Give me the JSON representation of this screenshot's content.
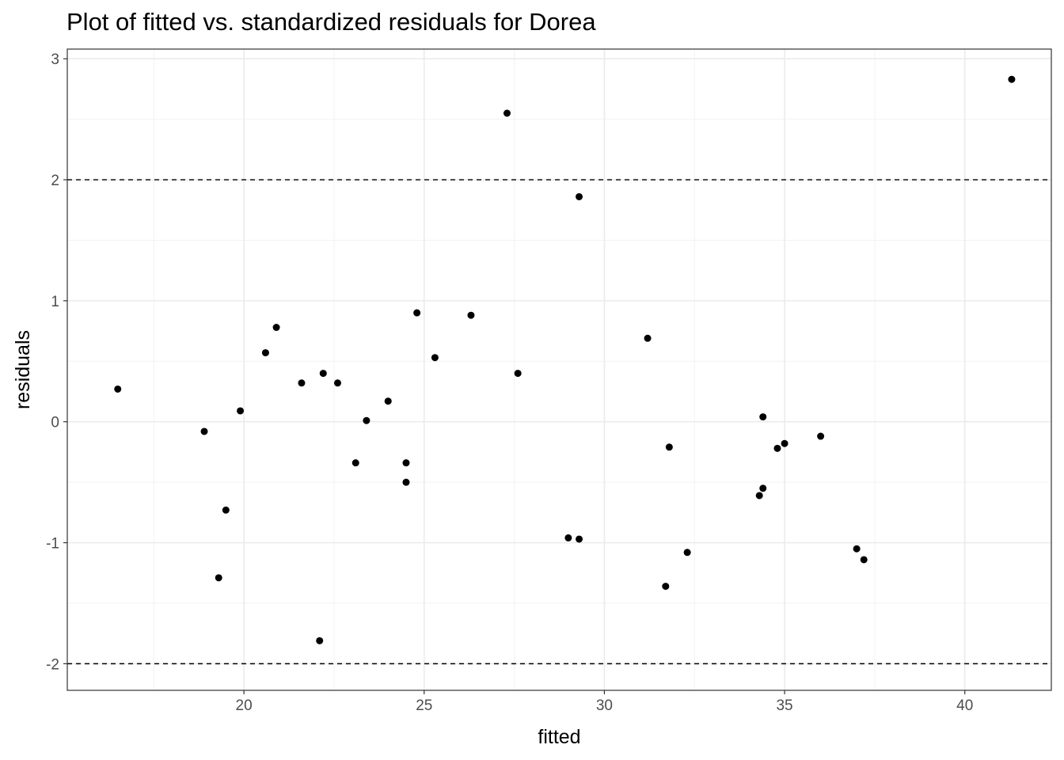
{
  "chart_data": {
    "type": "scatter",
    "title": "Plot of fitted vs. standardized residuals for Dorea",
    "xlabel": "fitted",
    "ylabel": "residuals",
    "xlim": [
      15.1,
      42.4
    ],
    "ylim": [
      -2.22,
      3.08
    ],
    "x_ticks": [
      20,
      25,
      30,
      35,
      40
    ],
    "y_ticks": [
      -2,
      -1,
      0,
      1,
      2,
      3
    ],
    "x_tick_labels": [
      "20",
      "25",
      "30",
      "35",
      "40"
    ],
    "y_tick_labels": [
      "-2",
      "-1",
      "0",
      "1",
      "2",
      "3"
    ],
    "reference_lines": [
      2,
      -2
    ],
    "grid": true,
    "theme": "bw",
    "point_color": "#000000",
    "points": [
      {
        "x": 16.5,
        "y": 0.27
      },
      {
        "x": 18.9,
        "y": -0.08
      },
      {
        "x": 19.3,
        "y": -1.29
      },
      {
        "x": 19.5,
        "y": -0.73
      },
      {
        "x": 19.9,
        "y": 0.09
      },
      {
        "x": 20.6,
        "y": 0.57
      },
      {
        "x": 20.9,
        "y": 0.78
      },
      {
        "x": 21.6,
        "y": 0.32
      },
      {
        "x": 22.1,
        "y": -1.81
      },
      {
        "x": 22.2,
        "y": 0.4
      },
      {
        "x": 22.6,
        "y": 0.32
      },
      {
        "x": 23.1,
        "y": -0.34
      },
      {
        "x": 23.4,
        "y": 0.01
      },
      {
        "x": 24.0,
        "y": 0.17
      },
      {
        "x": 24.5,
        "y": -0.5
      },
      {
        "x": 24.5,
        "y": -0.34
      },
      {
        "x": 24.8,
        "y": 0.9
      },
      {
        "x": 25.3,
        "y": 0.53
      },
      {
        "x": 26.3,
        "y": 0.88
      },
      {
        "x": 27.3,
        "y": 2.55
      },
      {
        "x": 27.6,
        "y": 0.4
      },
      {
        "x": 29.0,
        "y": -0.96
      },
      {
        "x": 29.3,
        "y": -0.97
      },
      {
        "x": 29.3,
        "y": 1.86
      },
      {
        "x": 31.2,
        "y": 0.69
      },
      {
        "x": 31.7,
        "y": -1.36
      },
      {
        "x": 31.8,
        "y": -0.21
      },
      {
        "x": 32.3,
        "y": -1.08
      },
      {
        "x": 34.3,
        "y": -0.61
      },
      {
        "x": 34.4,
        "y": 0.04
      },
      {
        "x": 34.4,
        "y": -0.55
      },
      {
        "x": 34.8,
        "y": -0.22
      },
      {
        "x": 35.0,
        "y": -0.18
      },
      {
        "x": 36.0,
        "y": -0.12
      },
      {
        "x": 37.0,
        "y": -1.05
      },
      {
        "x": 37.2,
        "y": -1.14
      },
      {
        "x": 41.3,
        "y": 2.83
      }
    ]
  }
}
